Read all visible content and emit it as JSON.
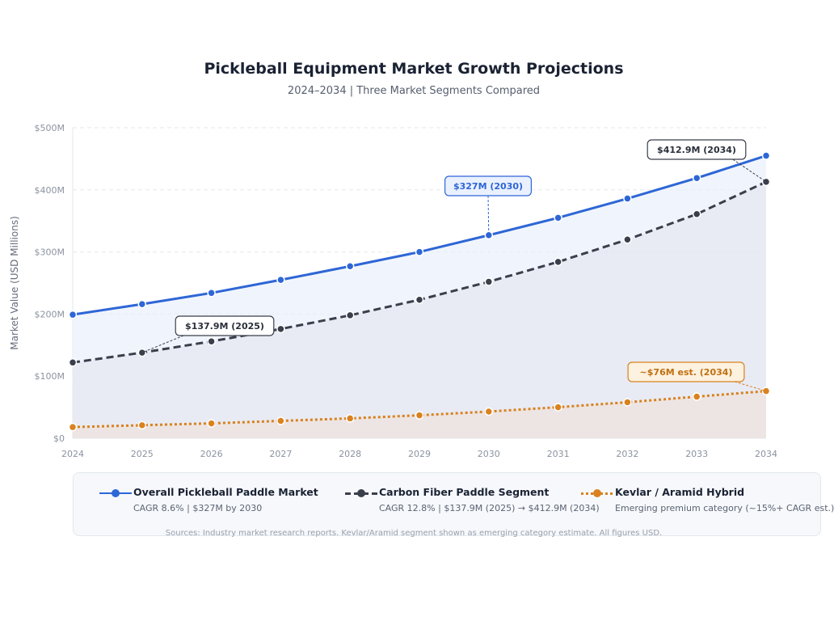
{
  "chart_data": {
    "type": "line",
    "title": "Pickleball Equipment Market Growth Projections",
    "subtitle": "2024–2034 | Three Market Segments Compared",
    "ylabel": "Market Value (USD Millions)",
    "xlabel": "",
    "ylim": [
      0,
      500
    ],
    "yticks": [
      0,
      100,
      200,
      300,
      400,
      500
    ],
    "ytick_labels": [
      "$0",
      "$100M",
      "$200M",
      "$300M",
      "$400M",
      "$500M"
    ],
    "categories": [
      "2024",
      "2025",
      "2026",
      "2027",
      "2028",
      "2029",
      "2030",
      "2031",
      "2032",
      "2033",
      "2034"
    ],
    "grid": true,
    "series": [
      {
        "name": "Overall Pickleball Paddle Market",
        "subtitle": "CAGR 8.6% | $327M by 2030",
        "color": "#2e66d6",
        "fill": "#e8effc",
        "dash": "solid",
        "values": [
          199,
          216,
          234,
          255,
          277,
          300,
          327,
          355,
          386,
          419,
          455
        ]
      },
      {
        "name": "Carbon Fiber Paddle Segment",
        "subtitle": "CAGR 12.8% | $137.9M (2025) → $412.9M (2034)",
        "color": "#3a3f4b",
        "fill": "#e3e5ef",
        "dash": "dashed",
        "values": [
          122,
          137.9,
          156,
          176,
          198,
          223,
          252,
          284,
          320,
          361,
          412.9
        ]
      },
      {
        "name": "Kevlar / Aramid Hybrid",
        "subtitle": "Emerging premium category (~15%+ CAGR est.)",
        "color": "#d9821f",
        "fill": "#efe2dc",
        "dash": "dotted",
        "values": [
          18,
          21,
          24,
          28,
          32,
          37,
          43,
          50,
          58,
          67,
          76
        ]
      }
    ],
    "annotations": [
      {
        "text": "$327M (2030)",
        "series": 0,
        "index": 6,
        "style": "blue"
      },
      {
        "text": "$412.9M (2034)",
        "series": 1,
        "index": 10,
        "style": "dark"
      },
      {
        "text": "$137.9M (2025)",
        "series": 1,
        "index": 1,
        "style": "dark"
      },
      {
        "text": "~$76M est. (2034)",
        "series": 2,
        "index": 10,
        "style": "orange"
      }
    ],
    "source": "Sources: Industry market research reports. Kevlar/Aramid segment shown as emerging category estimate. All figures USD."
  }
}
